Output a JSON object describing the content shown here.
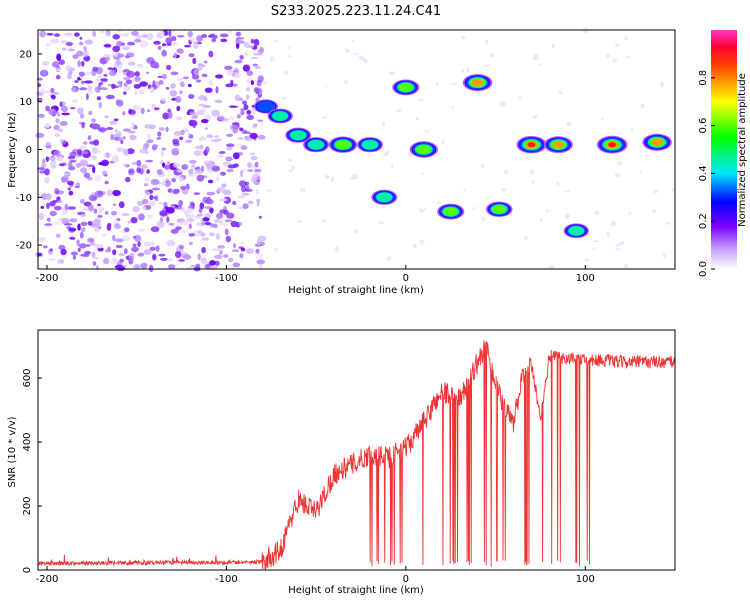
{
  "title": "S233.2025.223.11.24.C41",
  "chart_data": [
    {
      "type": "heatmap",
      "name": "spectrogram",
      "xlabel": "Height of straight line (km)",
      "ylabel": "Frequency (Hz)",
      "xlim": [
        -205,
        150
      ],
      "ylim": [
        -25,
        25
      ],
      "xticks": [
        -200,
        -100,
        0,
        100
      ],
      "yticks": [
        20,
        10,
        0,
        -10,
        -20
      ],
      "noise_region_x": [
        -205,
        -80
      ],
      "features": [
        {
          "x": 0,
          "freq": 13,
          "amp": 0.6
        },
        {
          "x": 40,
          "freq": 14,
          "amp": 0.8
        },
        {
          "x": -78,
          "freq": 9,
          "amp": 0.35
        },
        {
          "x": -70,
          "freq": 7,
          "amp": 0.45
        },
        {
          "x": -60,
          "freq": 3,
          "amp": 0.5
        },
        {
          "x": -50,
          "freq": 1,
          "amp": 0.5
        },
        {
          "x": -35,
          "freq": 1,
          "amp": 0.7
        },
        {
          "x": -20,
          "freq": 1,
          "amp": 0.5
        },
        {
          "x": -12,
          "freq": -10,
          "amp": 0.5
        },
        {
          "x": 10,
          "freq": 0,
          "amp": 0.7
        },
        {
          "x": 25,
          "freq": -13,
          "amp": 0.6
        },
        {
          "x": 52,
          "freq": -12.5,
          "amp": 0.55
        },
        {
          "x": 70,
          "freq": 1,
          "amp": 0.85
        },
        {
          "x": 85,
          "freq": 1,
          "amp": 0.75
        },
        {
          "x": 95,
          "freq": -17,
          "amp": 0.45
        },
        {
          "x": 115,
          "freq": 1,
          "amp": 0.9
        },
        {
          "x": 140,
          "freq": 1.5,
          "amp": 0.8
        }
      ]
    },
    {
      "type": "colorbar",
      "label": "Normalized spectral amplitude",
      "range": [
        0,
        1
      ],
      "ticks": [
        "0.0",
        "0.2",
        "0.4",
        "0.6",
        "0.8"
      ]
    },
    {
      "type": "line",
      "name": "snr",
      "xlabel": "Height of straight line (km)",
      "ylabel": "SNR (10 * v/v)",
      "xlim": [
        -205,
        150
      ],
      "ylim": [
        0,
        750
      ],
      "xticks": [
        -200,
        -100,
        0,
        100
      ],
      "yticks": [
        0,
        200,
        400,
        600
      ],
      "color": "#ee3333",
      "envelope_x": [
        -205,
        -80,
        -70,
        -60,
        -50,
        -40,
        -30,
        -20,
        -10,
        0,
        10,
        20,
        30,
        40,
        45,
        50,
        55,
        60,
        65,
        70,
        75,
        80,
        90,
        100,
        120,
        150
      ],
      "envelope_y": [
        20,
        25,
        60,
        220,
        180,
        300,
        330,
        360,
        350,
        380,
        460,
        560,
        530,
        650,
        700,
        580,
        500,
        460,
        600,
        640,
        470,
        670,
        660,
        660,
        650,
        650
      ],
      "dropout_x_range": [
        -20,
        105
      ]
    }
  ]
}
